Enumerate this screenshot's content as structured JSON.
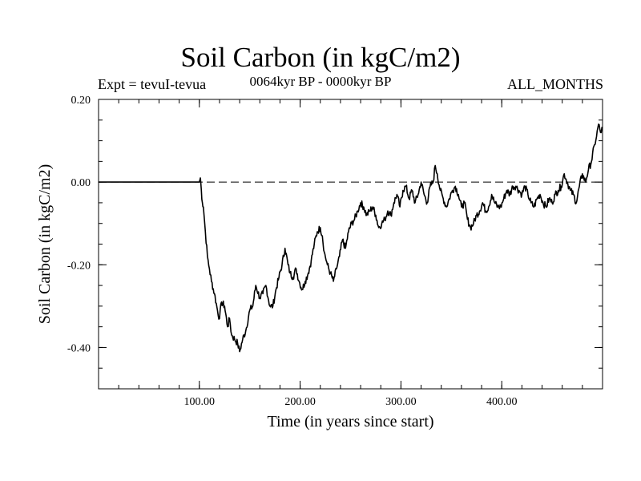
{
  "header": {
    "title": "Soil Carbon (in kgC/m2)",
    "expt": "Expt = tevuI-tevua",
    "period": "0064kyr BP - 0000kyr BP",
    "months": "ALL_MONTHS"
  },
  "chart_data": {
    "type": "line",
    "title": "Soil Carbon (in kgC/m2)",
    "xlabel": "Time (in years since start)",
    "ylabel": "Soil Carbon (in kgC/m2)",
    "xlim": [
      0,
      500
    ],
    "ylim": [
      -0.5,
      0.2
    ],
    "x_tick_labels": [
      {
        "value": 100,
        "label": "100.00"
      },
      {
        "value": 200,
        "label": "200.00"
      },
      {
        "value": 300,
        "label": "300.00"
      },
      {
        "value": 400,
        "label": "400.00"
      }
    ],
    "y_tick_labels": [
      {
        "value": 0.2,
        "label": "0.20"
      },
      {
        "value": 0.0,
        "label": "0.00"
      },
      {
        "value": -0.2,
        "label": "-0.20"
      },
      {
        "value": -0.4,
        "label": "-0.40"
      }
    ],
    "x_minor_step": 20,
    "y_minor_step": 0.05,
    "reference_line": {
      "y": 0.0,
      "style": "dashed"
    },
    "series": [
      {
        "name": "Soil Carbon",
        "x": [
          0,
          100,
          101,
          102,
          103,
          104,
          106,
          108,
          110,
          112,
          115,
          118,
          120,
          122,
          125,
          128,
          130,
          132,
          135,
          138,
          140,
          143,
          146,
          150,
          153,
          156,
          160,
          163,
          166,
          170,
          173,
          176,
          179,
          182,
          185,
          188,
          190,
          193,
          196,
          199,
          202,
          205,
          208,
          211,
          214,
          217,
          220,
          222,
          224,
          227,
          230,
          233,
          236,
          239,
          242,
          245,
          248,
          251,
          254,
          257,
          260,
          263,
          266,
          269,
          272,
          275,
          278,
          281,
          284,
          287,
          290,
          293,
          296,
          299,
          302,
          305,
          308,
          311,
          314,
          317,
          320,
          323,
          326,
          329,
          332,
          334,
          336,
          339,
          342,
          345,
          348,
          351,
          354,
          357,
          360,
          363,
          366,
          369,
          372,
          375,
          378,
          381,
          384,
          387,
          390,
          393,
          396,
          399,
          402,
          405,
          408,
          411,
          414,
          417,
          420,
          423,
          426,
          429,
          432,
          435,
          438,
          441,
          444,
          447,
          450,
          453,
          456,
          459,
          462,
          465,
          468,
          471,
          474,
          477,
          480,
          483,
          486,
          489,
          492,
          494,
          496,
          498,
          500
        ],
        "y": [
          0.0,
          0.0,
          0.01,
          -0.02,
          -0.05,
          -0.06,
          -0.12,
          -0.18,
          -0.21,
          -0.24,
          -0.27,
          -0.31,
          -0.33,
          -0.29,
          -0.3,
          -0.35,
          -0.33,
          -0.37,
          -0.38,
          -0.39,
          -0.41,
          -0.38,
          -0.36,
          -0.31,
          -0.3,
          -0.25,
          -0.28,
          -0.27,
          -0.25,
          -0.3,
          -0.3,
          -0.26,
          -0.23,
          -0.2,
          -0.16,
          -0.2,
          -0.22,
          -0.23,
          -0.21,
          -0.24,
          -0.26,
          -0.24,
          -0.22,
          -0.19,
          -0.15,
          -0.12,
          -0.11,
          -0.13,
          -0.17,
          -0.2,
          -0.22,
          -0.24,
          -0.21,
          -0.18,
          -0.14,
          -0.16,
          -0.12,
          -0.1,
          -0.09,
          -0.07,
          -0.05,
          -0.06,
          -0.08,
          -0.07,
          -0.06,
          -0.08,
          -0.11,
          -0.1,
          -0.09,
          -0.07,
          -0.08,
          -0.05,
          -0.03,
          -0.06,
          -0.02,
          -0.01,
          -0.04,
          -0.02,
          -0.05,
          -0.03,
          0.0,
          -0.03,
          -0.05,
          -0.01,
          0.0,
          0.04,
          0.02,
          -0.02,
          -0.04,
          -0.06,
          -0.04,
          -0.02,
          -0.01,
          -0.03,
          -0.06,
          -0.05,
          -0.09,
          -0.11,
          -0.1,
          -0.08,
          -0.07,
          -0.05,
          -0.07,
          -0.06,
          -0.03,
          -0.05,
          -0.06,
          -0.06,
          -0.04,
          -0.02,
          -0.03,
          -0.01,
          -0.01,
          -0.02,
          -0.03,
          -0.01,
          -0.03,
          -0.05,
          -0.06,
          -0.04,
          -0.03,
          -0.05,
          -0.06,
          -0.04,
          -0.05,
          -0.03,
          -0.02,
          -0.01,
          0.02,
          0.0,
          -0.02,
          -0.03,
          -0.05,
          -0.01,
          0.02,
          0.0,
          0.03,
          0.05,
          0.09,
          0.11,
          0.14,
          0.12,
          0.13
        ]
      }
    ]
  }
}
